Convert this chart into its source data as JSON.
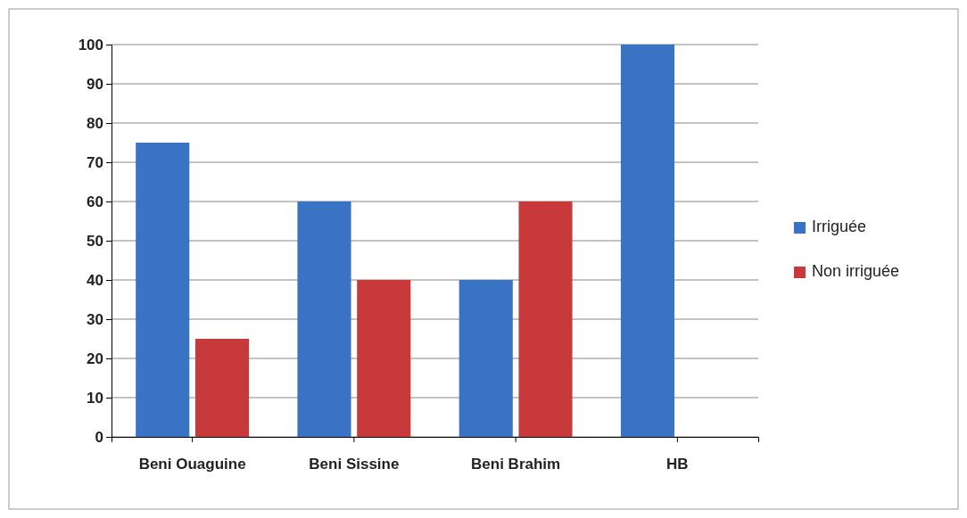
{
  "chart_data": {
    "type": "bar",
    "categories": [
      "Beni Ouaguine",
      "Beni Sissine",
      "Beni Brahim",
      "HB"
    ],
    "series": [
      {
        "name": "Irriguée",
        "color": "#3b73c4",
        "values": [
          75,
          60,
          40,
          100
        ]
      },
      {
        "name": "Non irriguée",
        "color": "#c7393a",
        "values": [
          25,
          40,
          60,
          0
        ]
      }
    ],
    "ylim": [
      0,
      100
    ],
    "yticks": [
      0,
      10,
      20,
      30,
      40,
      50,
      60,
      70,
      80,
      90,
      100
    ],
    "grid": "y",
    "legend": "right"
  }
}
